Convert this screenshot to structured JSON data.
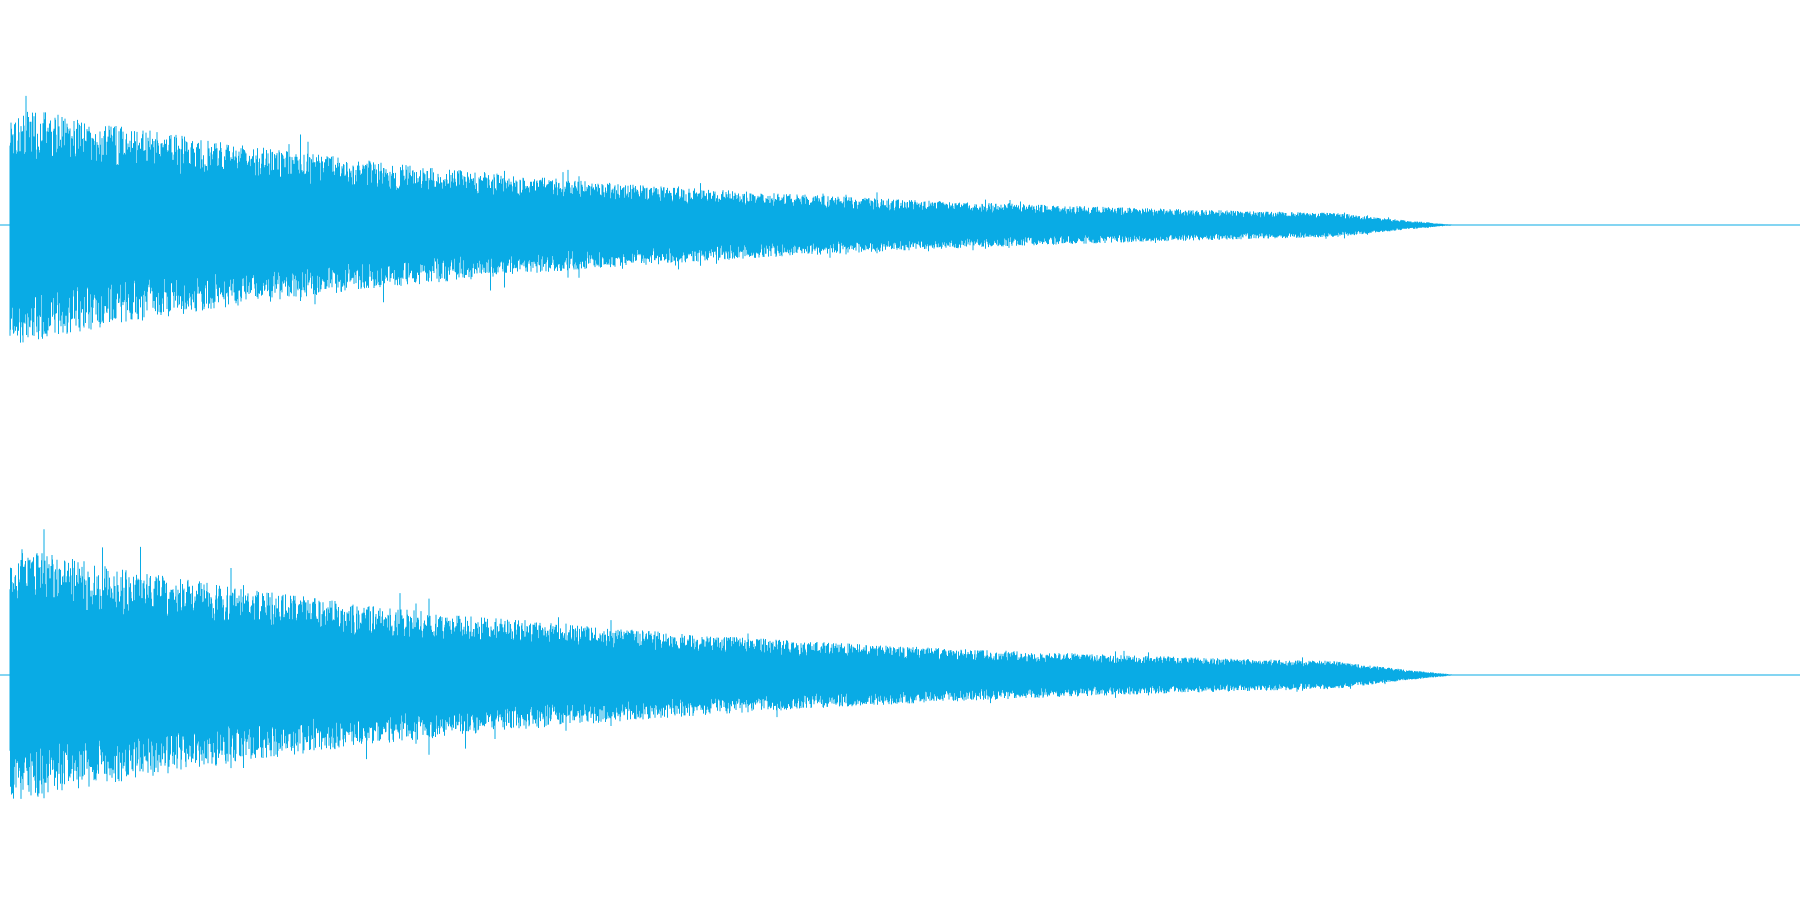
{
  "accent_color": "#09abe5",
  "background_color": "#ffffff",
  "channels": [
    {
      "id": "left",
      "peak_amplitude": 0.86,
      "decay_rate": 3.1,
      "silent_after_fraction": 0.81,
      "seed": 17
    },
    {
      "id": "right",
      "peak_amplitude": 0.92,
      "decay_rate": 3.0,
      "silent_after_fraction": 0.81,
      "seed": 53
    }
  ]
}
